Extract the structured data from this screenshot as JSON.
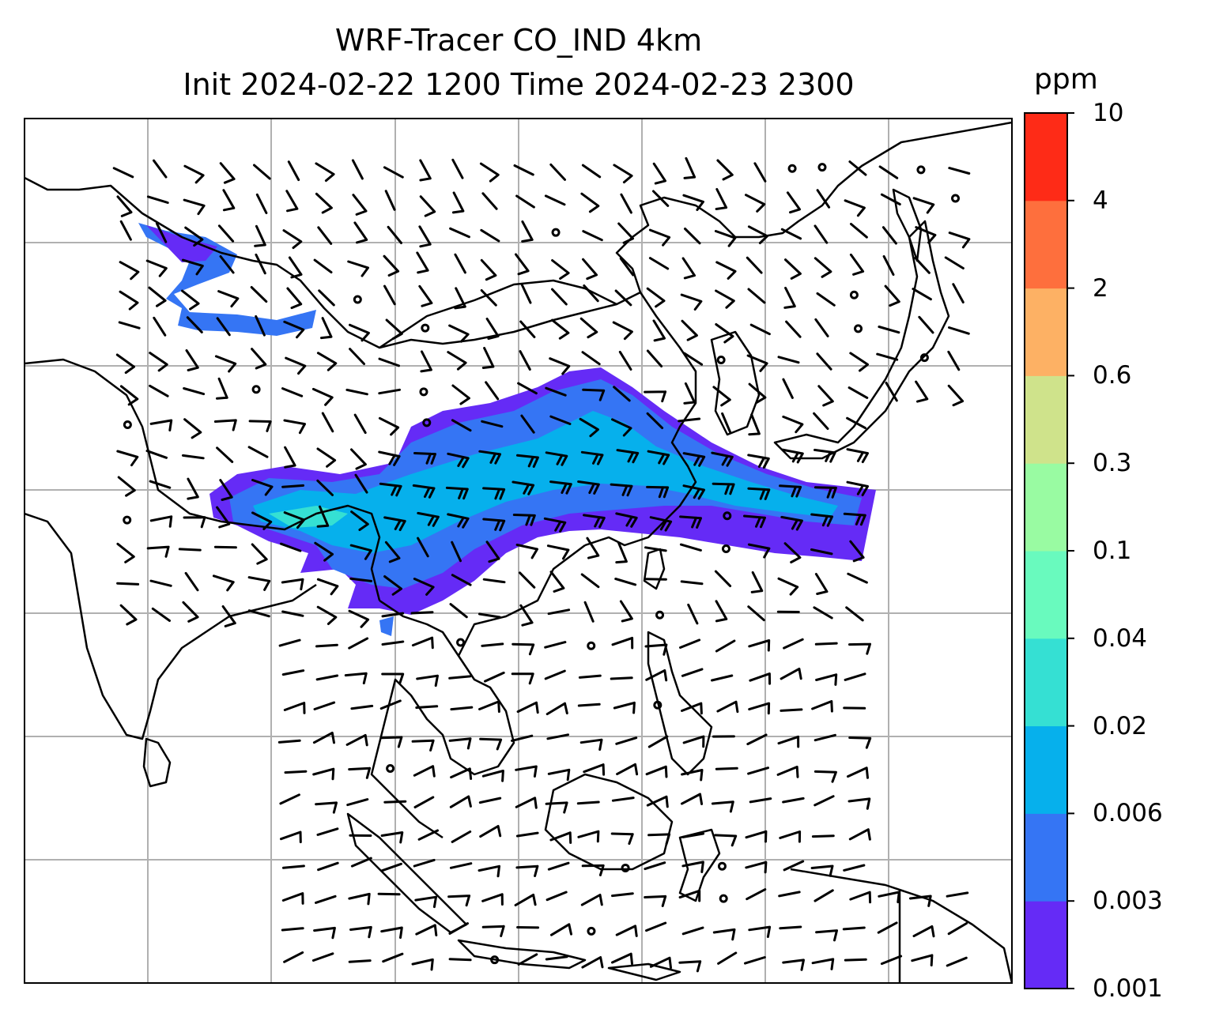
{
  "title": {
    "line1": "WRF-Tracer CO_IND 4km",
    "line2": "Init 2024-02-22 1200 Time 2024-02-23 2300"
  },
  "colorbar": {
    "unit": "ppm",
    "levels": [
      "0.001",
      "0.003",
      "0.006",
      "0.02",
      "0.04",
      "0.1",
      "0.3",
      "0.6",
      "2",
      "4",
      "10"
    ],
    "colors": [
      "#652bf6",
      "#3575f4",
      "#06b0ec",
      "#35e0d3",
      "#69fabe",
      "#99fba2",
      "#cfe38b",
      "#fdb164",
      "#fe6f3d",
      "#fe2b17"
    ]
  },
  "map": {
    "gridlines": "on",
    "gridline_color": "#b0b0b0",
    "coastline_color": "#000000"
  }
}
